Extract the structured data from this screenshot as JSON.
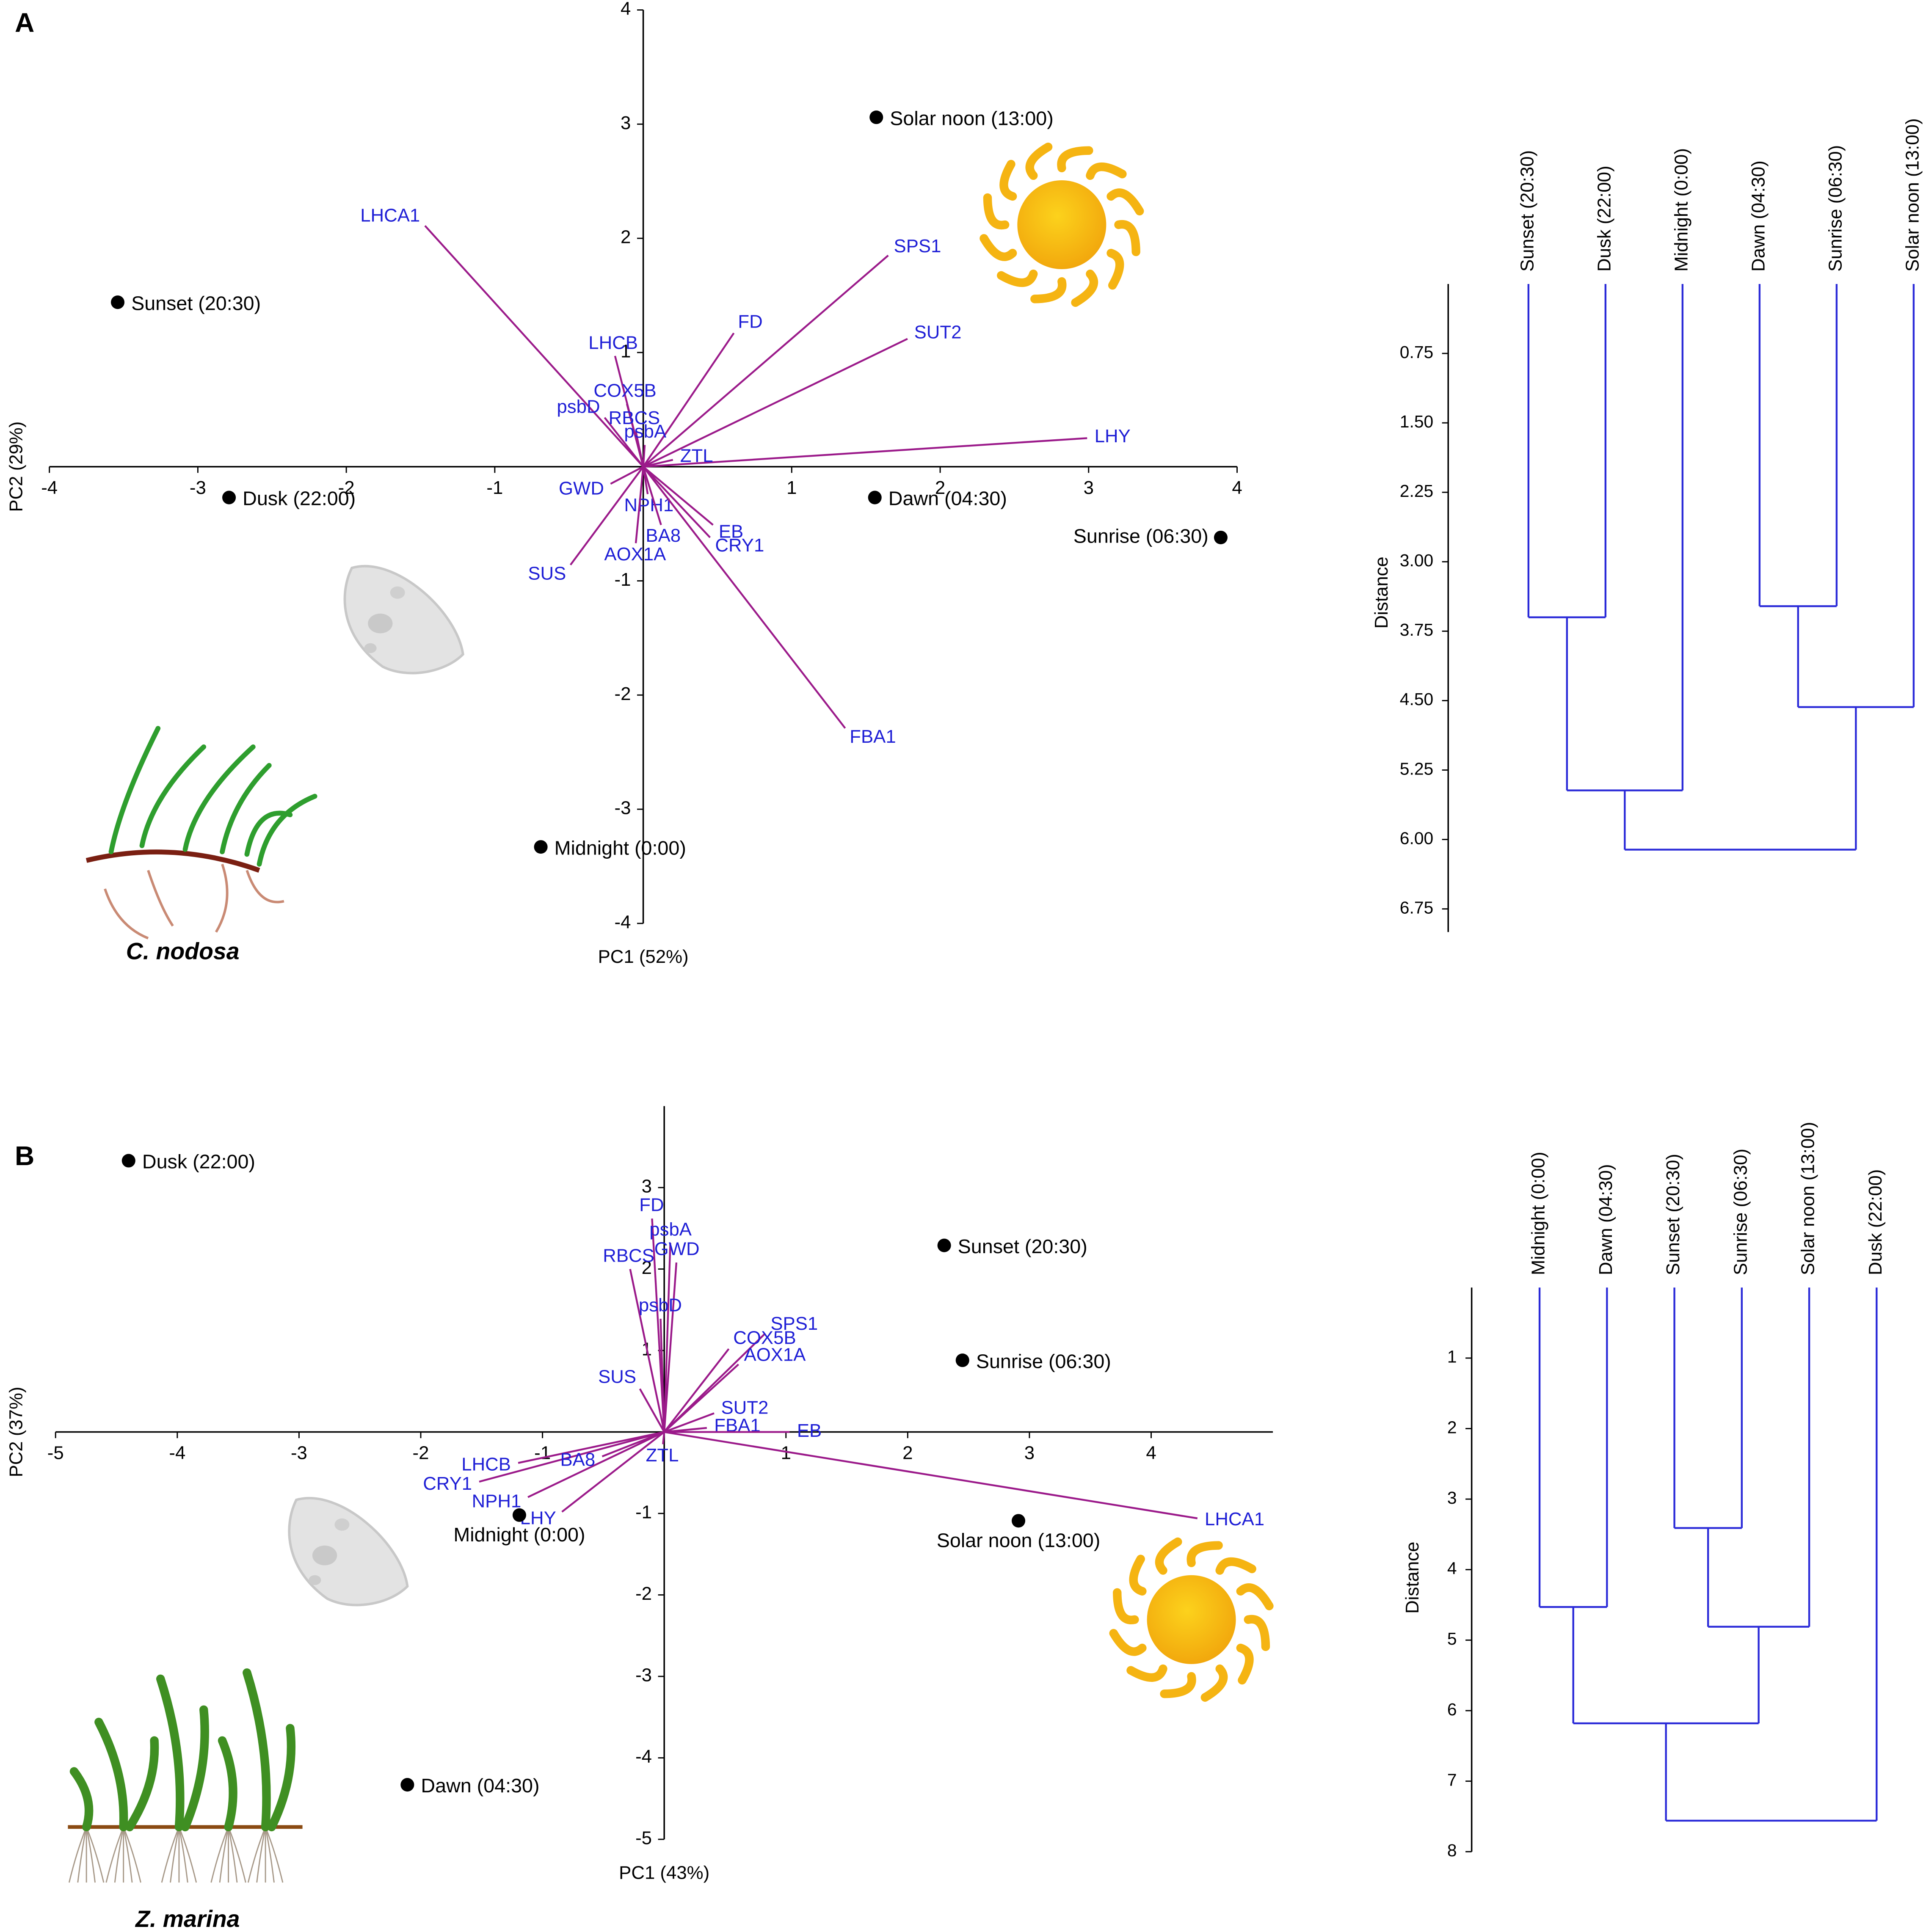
{
  "chart_data": [
    {
      "type": "biplot",
      "panel": "A",
      "caption": "C. nodosa",
      "x_label": "PC1 (52%)",
      "y_label": "PC2 (29%)",
      "xlim": [
        -4,
        4
      ],
      "ylim": [
        -4,
        4
      ],
      "xticks": [
        -4,
        -3,
        -2,
        -1,
        1,
        2,
        3,
        4
      ],
      "yticks": [
        -4,
        -3,
        -2,
        -1,
        1,
        2,
        3,
        4
      ],
      "point_color": "#000000",
      "loading_color": "#9b1a8a",
      "loading_label_color": "#1f1fd6",
      "points": [
        {
          "name": "Solar noon (13:00)",
          "x": 1.57,
          "y": 3.06
        },
        {
          "name": "Sunset (20:30)",
          "x": -3.54,
          "y": 1.44
        },
        {
          "name": "Dusk (22:00)",
          "x": -2.79,
          "y": -0.27
        },
        {
          "name": "Dawn (04:30)",
          "x": 1.56,
          "y": -0.27
        },
        {
          "name": "Sunrise (06:30)",
          "x": 3.89,
          "y": -0.62
        },
        {
          "name": "Midnight (0:00)",
          "x": -0.69,
          "y": -3.33
        }
      ],
      "loadings": [
        {
          "name": "LHCA1",
          "x": -1.47,
          "y": 2.11
        },
        {
          "name": "SPS1",
          "x": 1.65,
          "y": 1.85
        },
        {
          "name": "FD",
          "x": 0.61,
          "y": 1.17
        },
        {
          "name": "SUT2",
          "x": 1.78,
          "y": 1.12
        },
        {
          "name": "LHY",
          "x": 2.99,
          "y": 0.25
        },
        {
          "name": "LHCB",
          "x": -0.19,
          "y": 0.97
        },
        {
          "name": "COX5B",
          "x": -0.11,
          "y": 0.55
        },
        {
          "name": "psbD",
          "x": -0.26,
          "y": 0.43
        },
        {
          "name": "RBCS",
          "x": -0.05,
          "y": 0.31
        },
        {
          "name": "psbA",
          "x": 0.01,
          "y": 0.19
        },
        {
          "name": "ZTL",
          "x": 0.2,
          "y": 0.06
        },
        {
          "name": "GWD",
          "x": -0.22,
          "y": -0.15
        },
        {
          "name": "NPH1",
          "x": 0.03,
          "y": -0.24
        },
        {
          "name": "EB",
          "x": 0.47,
          "y": -0.51
        },
        {
          "name": "CRY1",
          "x": 0.45,
          "y": -0.62
        },
        {
          "name": "BA8",
          "x": 0.12,
          "y": -0.51
        },
        {
          "name": "AOX1A",
          "x": -0.05,
          "y": -0.67
        },
        {
          "name": "SUS",
          "x": -0.49,
          "y": -0.86
        },
        {
          "name": "FBA1",
          "x": 1.36,
          "y": -2.29
        }
      ]
    },
    {
      "type": "dendrogram",
      "y_label": "Distance",
      "color": "#2a2ad8",
      "ylim": [
        0,
        7
      ],
      "yticks": [
        0.75,
        {
          "value": 1.5,
          "label": "1.50"
        },
        2.25,
        {
          "value": 3,
          "label": "3.00"
        },
        3.75,
        {
          "value": 4.5,
          "label": "4.50"
        },
        5.25,
        {
          "value": 6,
          "label": "6.00"
        },
        6.75
      ],
      "leaves": [
        "Sunset (20:30)",
        "Dusk (22:00)",
        "Midnight (0:00)",
        "Dawn (04:30)",
        "Sunrise (06:30)",
        "Solar noon (13:00)"
      ],
      "merges": [
        {
          "left": 3,
          "right": 4,
          "height": 3.48
        },
        {
          "left": 0,
          "right": 1,
          "height": 3.6
        },
        {
          "left": 6,
          "right": 5,
          "height": 4.57
        },
        {
          "left": 7,
          "right": 2,
          "height": 5.47
        },
        {
          "left": 9,
          "right": 8,
          "height": 6.11
        }
      ]
    },
    {
      "type": "biplot",
      "panel": "B",
      "caption": "Z. marina",
      "x_label": "PC1 (43%)",
      "y_label": "PC2 (37%)",
      "xlim": [
        -5,
        5
      ],
      "ylim": [
        -5,
        4
      ],
      "xticks": [
        -5,
        -4,
        -3,
        -2,
        -1,
        1,
        2,
        3,
        4
      ],
      "yticks": [
        -5,
        -4,
        -3,
        -2,
        -1,
        1,
        2,
        3
      ],
      "point_color": "#000000",
      "loading_color": "#9b1a8a",
      "loading_label_color": "#1f1fd6",
      "points": [
        {
          "name": "Dusk (22:00)",
          "x": -4.4,
          "y": 3.33
        },
        {
          "name": "Sunset (20:30)",
          "x": 2.3,
          "y": 2.29
        },
        {
          "name": "Sunrise (06:30)",
          "x": 2.45,
          "y": 0.88
        },
        {
          "name": "Solar noon (13:00)",
          "x": 2.91,
          "y": -1.09
        },
        {
          "name": "Midnight (0:00)",
          "x": -1.19,
          "y": -1.02
        },
        {
          "name": "Dawn (04:30)",
          "x": -2.11,
          "y": -4.33
        }
      ],
      "loadings": [
        {
          "name": "LHCA1",
          "x": 4.38,
          "y": -1.06
        },
        {
          "name": "FD",
          "x": -0.1,
          "y": 2.62
        },
        {
          "name": "psbA",
          "x": 0.05,
          "y": 2.32
        },
        {
          "name": "GWD",
          "x": 0.1,
          "y": 2.08
        },
        {
          "name": "RBCS",
          "x": -0.28,
          "y": 2.0
        },
        {
          "name": "psbD",
          "x": -0.03,
          "y": 1.39
        },
        {
          "name": "SPS1",
          "x": 0.83,
          "y": 1.21
        },
        {
          "name": "COX5B",
          "x": 0.53,
          "y": 1.02
        },
        {
          "name": "AOX1A",
          "x": 0.61,
          "y": 0.83
        },
        {
          "name": "SUS",
          "x": -0.2,
          "y": 0.53
        },
        {
          "name": "SUT2",
          "x": 0.41,
          "y": 0.23
        },
        {
          "name": "FBA1",
          "x": 0.35,
          "y": 0.05
        },
        {
          "name": "EB",
          "x": 1.03,
          "y": 0
        },
        {
          "name": "ZTL",
          "x": -0.01,
          "y": -0.15
        },
        {
          "name": "LHCB",
          "x": -1.2,
          "y": -0.38
        },
        {
          "name": "CRY1",
          "x": -1.52,
          "y": -0.61
        },
        {
          "name": "NPH1",
          "x": -1.12,
          "y": -0.8
        },
        {
          "name": "BA8",
          "x": -0.51,
          "y": -0.3
        },
        {
          "name": "LHY",
          "x": -0.84,
          "y": -0.98
        }
      ]
    },
    {
      "type": "dendrogram",
      "y_label": "Distance",
      "color": "#2a2ad8",
      "ylim": [
        0,
        8
      ],
      "yticks": [
        1,
        2,
        3,
        4,
        5,
        6,
        7,
        8
      ],
      "leaves": [
        "Midnight (0:00)",
        "Dawn (04:30)",
        "Sunset (20:30)",
        "Sunrise (06:30)",
        "Solar noon (13:00)",
        "Dusk (22:00)"
      ],
      "merges": [
        {
          "left": 2,
          "right": 3,
          "height": 3.41
        },
        {
          "left": 0,
          "right": 1,
          "height": 4.53
        },
        {
          "left": 6,
          "right": 4,
          "height": 4.81
        },
        {
          "left": 7,
          "right": 8,
          "height": 6.18
        },
        {
          "left": 9,
          "right": 5,
          "height": 7.56
        }
      ]
    }
  ]
}
